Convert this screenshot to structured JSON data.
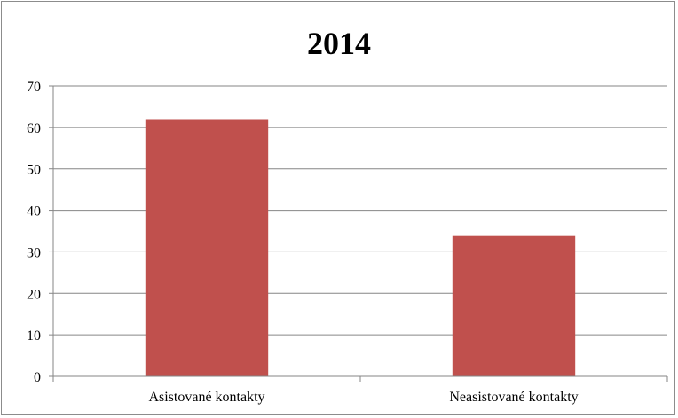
{
  "chart_data": {
    "type": "bar",
    "title": "2014",
    "categories": [
      "Asistované kontakty",
      "Neasistované kontakty"
    ],
    "values": [
      62,
      34
    ],
    "ylim": [
      0,
      70
    ],
    "yticks": [
      0,
      10,
      20,
      30,
      40,
      50,
      60,
      70
    ],
    "xlabel": "",
    "ylabel": "",
    "grid": true,
    "bar_color": "#c0504d",
    "grid_color": "#868686"
  }
}
